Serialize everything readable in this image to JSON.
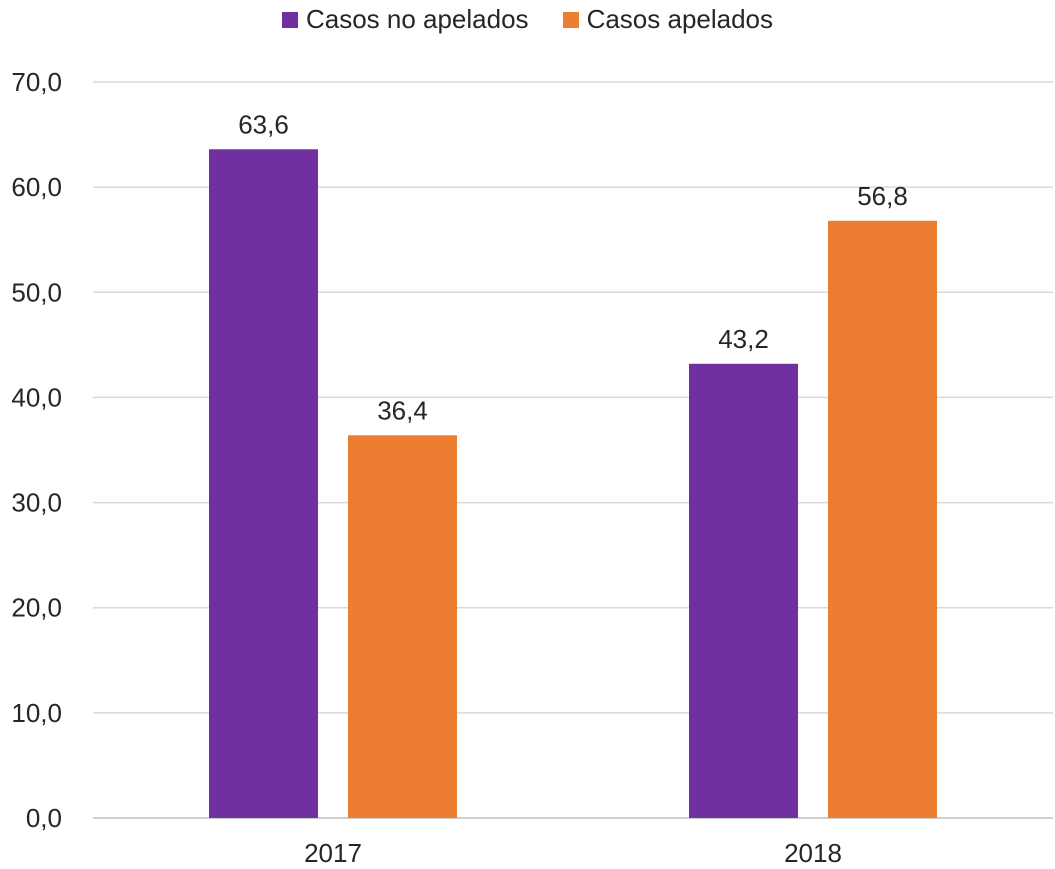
{
  "chart_data": {
    "type": "bar",
    "categories": [
      "2017",
      "2018"
    ],
    "series": [
      {
        "name": "Casos no apelados",
        "values": [
          63.6,
          43.2
        ],
        "color": "#7030A0",
        "labels": [
          "63,6",
          "43,2"
        ]
      },
      {
        "name": "Casos apelados",
        "values": [
          36.4,
          56.8
        ],
        "color": "#ED7D31",
        "labels": [
          "36,4",
          "56,8"
        ]
      }
    ],
    "ylim": [
      0,
      70
    ],
    "yticks": [
      0,
      10,
      20,
      30,
      40,
      50,
      60,
      70
    ],
    "ytick_labels": [
      "0,0",
      "10,0",
      "20,0",
      "30,0",
      "40,0",
      "50,0",
      "60,0",
      "70,0"
    ],
    "grid": true,
    "legend_position": "top-center"
  }
}
